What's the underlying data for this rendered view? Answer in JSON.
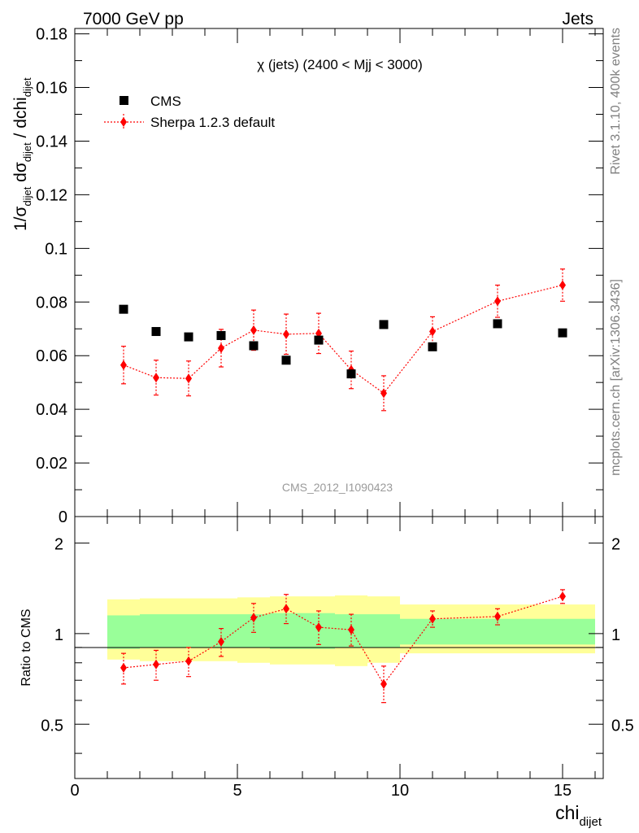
{
  "header": {
    "left": "7000 GeV pp",
    "right": "Jets"
  },
  "side": {
    "rivet": "Rivet 3.1.10,  400k events",
    "mcplots": "mcplots.cern.ch [arXiv:1306.3436]"
  },
  "main": {
    "title": "χ (jets) (2400 < Mjj < 3000)",
    "analysis_label": "CMS_2012_I1090423",
    "ylabel": {
      "pre": "1/σ",
      "sub1": "dijet",
      "mid": " dσ",
      "sub2": "dijet",
      "post": " / dchi",
      "sub3": "dijet"
    },
    "yticks": [
      "0",
      "0.02",
      "0.04",
      "0.06",
      "0.08",
      "0.1",
      "0.12",
      "0.14",
      "0.16",
      "0.18"
    ]
  },
  "ratio": {
    "ylabel": "Ratio to CMS",
    "yticks": [
      "0.5",
      "1",
      "2"
    ]
  },
  "xaxis": {
    "label": "chi",
    "label_sub": "dijet",
    "ticks": [
      "0",
      "5",
      "10",
      "15"
    ]
  },
  "legend": [
    {
      "name": "CMS"
    },
    {
      "name": "Sherpa 1.2.3 default"
    }
  ],
  "colors": {
    "data": "#000000",
    "mc": "#ff0000",
    "band_inner": "#99ff99",
    "band_outer": "#ffff99"
  },
  "chart_data": [
    {
      "type": "scatter",
      "title": "χ (jets) (2400 < Mjj < 3000)",
      "xlim": [
        0,
        16.25
      ],
      "ylim": [
        0,
        0.182
      ],
      "series": [
        {
          "name": "CMS",
          "x": [
            1.5,
            2.5,
            3.5,
            4.5,
            5.5,
            6.5,
            7.5,
            8.5,
            9.5,
            11,
            13,
            15
          ],
          "y": [
            0.0773,
            0.069,
            0.067,
            0.0675,
            0.0637,
            0.0583,
            0.0658,
            0.0532,
            0.0716,
            0.0633,
            0.0719,
            0.0685
          ]
        },
        {
          "name": "Sherpa 1.2.3 default",
          "x": [
            1.5,
            2.5,
            3.5,
            4.5,
            5.5,
            6.5,
            7.5,
            8.5,
            9.5,
            11,
            13,
            15
          ],
          "y": [
            0.0565,
            0.0518,
            0.0515,
            0.0628,
            0.0695,
            0.068,
            0.0683,
            0.0547,
            0.046,
            0.069,
            0.0803,
            0.0863
          ],
          "err": [
            0.007,
            0.0065,
            0.0065,
            0.007,
            0.0075,
            0.0075,
            0.0075,
            0.007,
            0.0065,
            0.0055,
            0.006,
            0.006
          ]
        }
      ]
    },
    {
      "type": "scatter",
      "ylabel": "Ratio to CMS",
      "yscale": "log",
      "xlim": [
        0,
        16.25
      ],
      "ylim": [
        0.33,
        2.45
      ],
      "bands": {
        "edges": [
          1,
          2,
          3,
          4,
          5,
          6,
          7,
          8,
          9,
          10,
          12,
          14,
          16
        ],
        "inner_up": [
          1.15,
          1.16,
          1.16,
          1.16,
          1.16,
          1.17,
          1.17,
          1.16,
          1.16,
          1.12,
          1.12,
          1.12
        ],
        "inner_dn": [
          0.89,
          0.9,
          0.9,
          0.9,
          0.9,
          0.89,
          0.89,
          0.9,
          0.9,
          0.92,
          0.92,
          0.92
        ],
        "outer_up": [
          1.3,
          1.31,
          1.31,
          1.31,
          1.32,
          1.33,
          1.33,
          1.34,
          1.33,
          1.25,
          1.25,
          1.25
        ],
        "outer_dn": [
          0.82,
          0.81,
          0.81,
          0.81,
          0.8,
          0.79,
          0.79,
          0.78,
          0.8,
          0.86,
          0.86,
          0.86
        ]
      },
      "series": [
        {
          "name": "Sherpa 1.2.3 default",
          "x": [
            1.5,
            2.5,
            3.5,
            4.5,
            5.5,
            6.5,
            7.5,
            8.5,
            9.5,
            11,
            13,
            15
          ],
          "y": [
            0.77,
            0.79,
            0.81,
            0.94,
            1.13,
            1.21,
            1.05,
            1.03,
            0.68,
            1.12,
            1.14,
            1.33
          ],
          "err_up": [
            0.09,
            0.09,
            0.09,
            0.1,
            0.13,
            0.14,
            0.14,
            0.13,
            0.1,
            0.07,
            0.07,
            0.07
          ],
          "err_dn": [
            0.09,
            0.09,
            0.09,
            0.1,
            0.12,
            0.13,
            0.13,
            0.12,
            0.09,
            0.07,
            0.07,
            0.07
          ]
        }
      ]
    }
  ]
}
